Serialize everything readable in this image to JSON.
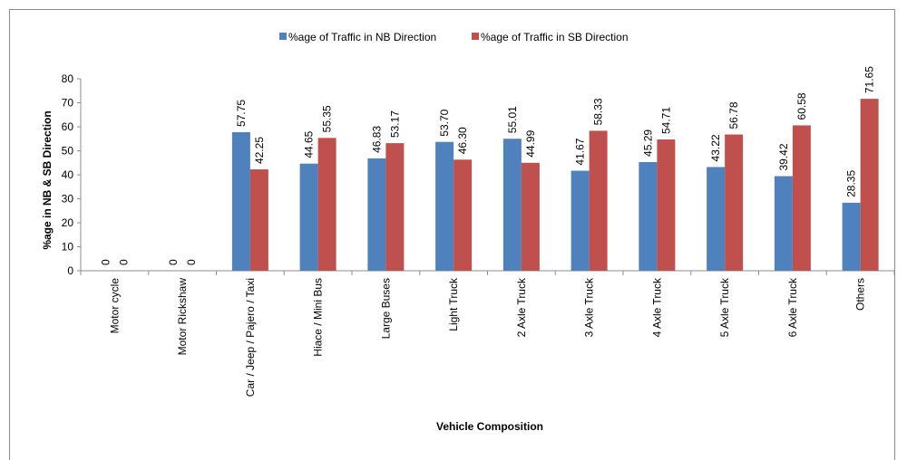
{
  "chart_data": {
    "type": "bar",
    "title": "",
    "xlabel": "Vehicle Composition",
    "ylabel": "%age in NB & SB Direction",
    "ylim": [
      0,
      80
    ],
    "yticks": [
      0,
      10,
      20,
      30,
      40,
      50,
      60,
      70,
      80
    ],
    "grid": false,
    "legend_position": "top-center",
    "categories": [
      "Motor cycle",
      "Motor Rickshaw",
      "Car / Jeep / Pajero / Taxi",
      "Hiace / Mini Bus",
      "Large Buses",
      "Light Truck",
      "2 Axle Truck",
      "3 Axle Truck",
      "4 Axle Truck",
      "5 Axle Truck",
      "6 Axle Truck",
      "Others"
    ],
    "series": [
      {
        "name": "%age of Traffic in NB Direction",
        "color": "#4f81bd",
        "values": [
          0,
          0,
          57.75,
          44.65,
          46.83,
          53.7,
          55.01,
          41.67,
          45.29,
          43.22,
          39.42,
          28.35
        ],
        "labels": [
          "0",
          "0",
          "57.75",
          "44.65",
          "46.83",
          "53.70",
          "55.01",
          "41.67",
          "45.29",
          "43.22",
          "39.42",
          "28.35"
        ]
      },
      {
        "name": "%age of Traffic in SB Direction",
        "color": "#c0504d",
        "values": [
          0,
          0,
          42.25,
          55.35,
          53.17,
          46.3,
          44.99,
          58.33,
          54.71,
          56.78,
          60.58,
          71.65
        ],
        "labels": [
          "0",
          "0",
          "42.25",
          "55.35",
          "53.17",
          "46.30",
          "44.99",
          "58.33",
          "54.71",
          "56.78",
          "60.58",
          "71.65"
        ]
      }
    ]
  }
}
